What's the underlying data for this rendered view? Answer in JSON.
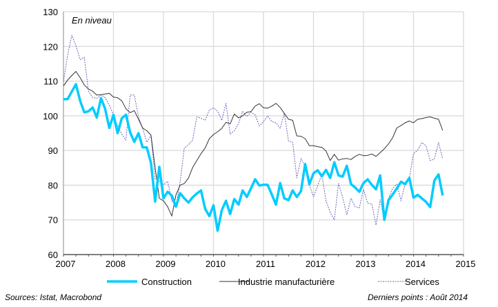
{
  "chart_data": {
    "type": "line",
    "title": "",
    "annotation": "En niveau",
    "xlabel": "",
    "ylabel": "",
    "x_start": "2007-01",
    "frequency": "monthly",
    "xlim": [
      2007,
      2015
    ],
    "ylim": [
      60,
      130
    ],
    "x_ticks": [
      "2007",
      "2008",
      "2009",
      "2010",
      "2011",
      "2012",
      "2013",
      "2014",
      "2015"
    ],
    "y_ticks": [
      "60",
      "70",
      "80",
      "90",
      "100",
      "110",
      "120",
      "130"
    ],
    "grid": true,
    "legend_position": "bottom",
    "series": [
      {
        "name": "Construction",
        "color": "#00CCFF",
        "style": "thick-solid",
        "values": [
          104.8,
          104.8,
          107,
          109.1,
          104.3,
          101,
          101.3,
          102.4,
          99.5,
          105.1,
          102,
          96.5,
          100.3,
          95,
          99.3,
          100.3,
          95.2,
          92.5,
          95,
          90.9,
          90.9,
          86.4,
          75.3,
          85.3,
          76.2,
          78.1,
          77,
          73.8,
          77.7,
          76.2,
          75,
          76.5,
          77.6,
          78.5,
          73.2,
          71.1,
          74.2,
          66.9,
          72.8,
          75.5,
          71.7,
          76,
          74.4,
          78.5,
          76.6,
          79.1,
          81.7,
          79.9,
          80.1,
          80.1,
          77.3,
          74.4,
          80.6,
          76.2,
          75.7,
          78.5,
          76.6,
          78.3,
          86.1,
          80.3,
          83.4,
          84.3,
          82.6,
          84.4,
          82.1,
          86.6,
          82.8,
          82.5,
          85.6,
          80.3,
          79.3,
          78.1,
          80.6,
          81.7,
          80.1,
          78.8,
          82.8,
          70,
          75.7,
          77.3,
          79.1,
          81,
          80.3,
          82.1,
          76.4,
          77.2,
          76.2,
          75.2,
          73.7,
          81.3,
          83.1,
          77
        ]
      },
      {
        "name": "Industrie manufacturière",
        "color": "#333333",
        "style": "thin-solid",
        "values": [
          108.6,
          110.3,
          111.6,
          112.8,
          111,
          108.9,
          107.7,
          107.1,
          106,
          106.1,
          106.3,
          106.5,
          105.4,
          105.2,
          104.3,
          102,
          100.9,
          101.5,
          99,
          96.5,
          95.7,
          94.4,
          85.1,
          76.2,
          75.5,
          73.8,
          71.1,
          77.2,
          80,
          80.5,
          82.1,
          85.1,
          87.1,
          89.1,
          90.7,
          93.4,
          94.6,
          95.4,
          96.4,
          98.1,
          97.7,
          100.5,
          99.4,
          100,
          101,
          101.2,
          102.8,
          103.5,
          102.3,
          102.2,
          102.8,
          103.6,
          102.4,
          100.7,
          99,
          98.7,
          94.2,
          94.1,
          93.4,
          91.4,
          91.4,
          91.1,
          90.9,
          89.9,
          87.1,
          88.9,
          87.2,
          87.6,
          87.7,
          87.4,
          88.3,
          88.9,
          88.5,
          88.6,
          89,
          88.3,
          89.4,
          90.5,
          91.9,
          93.7,
          96.5,
          97.2,
          98,
          98.5,
          98,
          99,
          99.2,
          99.5,
          99.7,
          99.3,
          99,
          95.8
        ]
      },
      {
        "name": "Services",
        "color": "#6666BB",
        "style": "dotted",
        "values": [
          109.9,
          117.5,
          123.2,
          120.2,
          116.2,
          116.9,
          107,
          105.3,
          105,
          106,
          105.3,
          103,
          100.3,
          97,
          94.7,
          93,
          106,
          106,
          99.7,
          96.4,
          92.4,
          94.4,
          81.8,
          81.1,
          80.1,
          81.1,
          75.5,
          73.8,
          81.1,
          90.7,
          91.7,
          93,
          99.7,
          99.3,
          98.7,
          101.7,
          102.3,
          101.3,
          98.7,
          103.6,
          94.7,
          95.7,
          97.7,
          101.3,
          99.8,
          101,
          100.3,
          97,
          98.3,
          100,
          98.3,
          98,
          96.4,
          100.7,
          92.7,
          92.4,
          82.1,
          87.7,
          85.4,
          80.1,
          76.6,
          79.8,
          83.1,
          75.5,
          72.2,
          70,
          80.5,
          76.5,
          71.5,
          76.2,
          73.8,
          73.5,
          78.8,
          74.8,
          74.6,
          68.5,
          75.8,
          69.9,
          76.2,
          79.1,
          80.3,
          75.5,
          80.5,
          82.1,
          89.1,
          90.1,
          92.3,
          91.4,
          87.1,
          87.5,
          92.3,
          87.6
        ]
      }
    ]
  },
  "footer": {
    "sources": "Sources: Istat, Macrobond",
    "last_points": "Derniers points : Août 2014"
  }
}
